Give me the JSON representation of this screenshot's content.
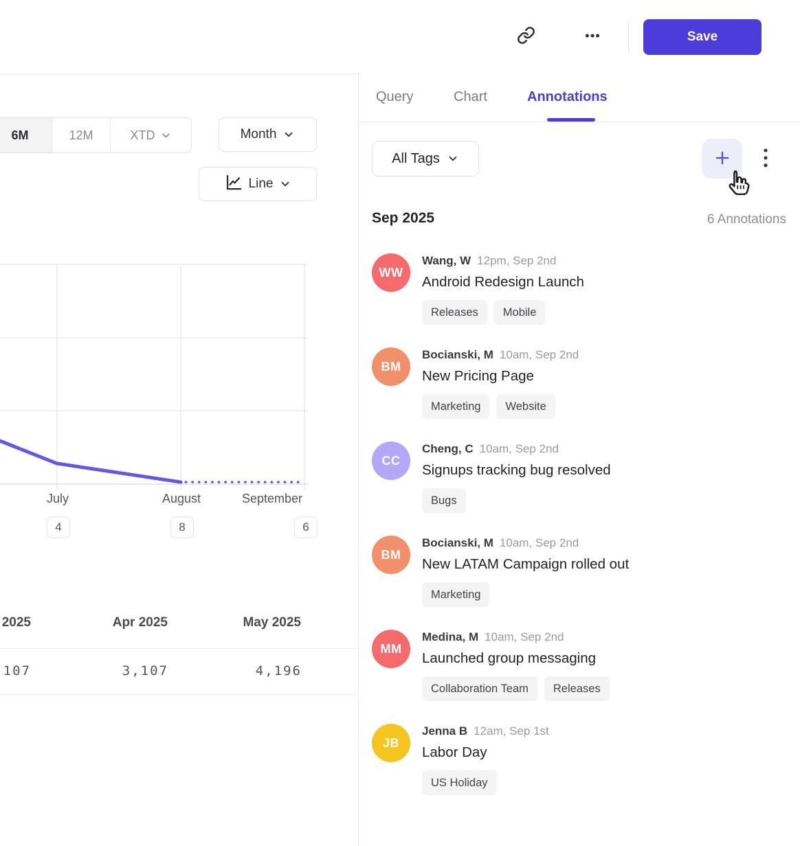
{
  "accent_color": "#4b3cdb",
  "header": {
    "save_label": "Save",
    "icons": {
      "link": "chain-link-icon",
      "more": "horizontal-ellipsis-icon"
    }
  },
  "left_panel": {
    "range_options": [
      {
        "label": "6M",
        "active": true,
        "has_dropdown": false
      },
      {
        "label": "12M",
        "active": false,
        "has_dropdown": false
      },
      {
        "label": "XTD",
        "active": false,
        "has_dropdown": true
      }
    ],
    "granularity_label": "Month",
    "chart_type_label": "Line"
  },
  "chart_data": {
    "type": "line",
    "x_labels": [
      "July",
      "August",
      "September"
    ],
    "x_axis_annotation_counts": [
      4,
      8,
      6
    ],
    "x_gridlines_rel": [
      0.187,
      0.594,
      1.0
    ],
    "grid": true,
    "line_color": "#6357e5",
    "series": [
      {
        "name": "actual",
        "style": "solid",
        "points_rel": [
          [
            0.0,
            0.197
          ],
          [
            0.187,
            0.094
          ],
          [
            0.594,
            0.009
          ]
        ]
      },
      {
        "name": "forecast",
        "style": "dotted",
        "points_rel": [
          [
            0.61,
            0.009
          ],
          [
            0.993,
            0.009
          ]
        ]
      }
    ],
    "summary_table": {
      "columns": [
        {
          "header": "2025",
          "value": "107"
        },
        {
          "header": "Apr 2025",
          "value": "3,107"
        },
        {
          "header": "May 2025",
          "value": "4,196"
        }
      ]
    }
  },
  "annotations_panel": {
    "tabs": [
      {
        "label": "Query",
        "active": false
      },
      {
        "label": "Chart",
        "active": false
      },
      {
        "label": "Annotations",
        "active": true
      }
    ],
    "filter_label": "All Tags",
    "add_icon": "plus-icon",
    "menu_icon": "vertical-ellipsis-icon",
    "group_header": "Sep 2025",
    "group_count": "6 Annotations",
    "items": [
      {
        "initials": "WW",
        "avatar_color": "#f56b6b",
        "author": "Wang, W",
        "timestamp": "12pm, Sep 2nd",
        "title": "Android Redesign Launch",
        "tags": [
          "Releases",
          "Mobile"
        ]
      },
      {
        "initials": "BM",
        "avatar_color": "#f2906b",
        "author": "Bocianski, M",
        "timestamp": "10am, Sep 2nd",
        "title": "New Pricing Page",
        "tags": [
          "Marketing",
          "Website"
        ]
      },
      {
        "initials": "CC",
        "avatar_color": "#b5a7f8",
        "author": "Cheng, C",
        "timestamp": "10am, Sep 2nd",
        "title": "Signups tracking bug resolved",
        "tags": [
          "Bugs"
        ]
      },
      {
        "initials": "BM",
        "avatar_color": "#f2906b",
        "author": "Bocianski, M",
        "timestamp": "10am, Sep 2nd",
        "title": "New LATAM Campaign rolled out",
        "tags": [
          "Marketing"
        ]
      },
      {
        "initials": "MM",
        "avatar_color": "#f56b6b",
        "author": "Medina, M",
        "timestamp": "10am, Sep 2nd",
        "title": "Launched group messaging",
        "tags": [
          "Collaboration Team",
          "Releases"
        ]
      },
      {
        "initials": "JB",
        "avatar_color": "#f6c51f",
        "author": "Jenna B",
        "timestamp": "12am, Sep 1st",
        "title": "Labor Day",
        "tags": [
          "US Holiday"
        ]
      }
    ]
  }
}
